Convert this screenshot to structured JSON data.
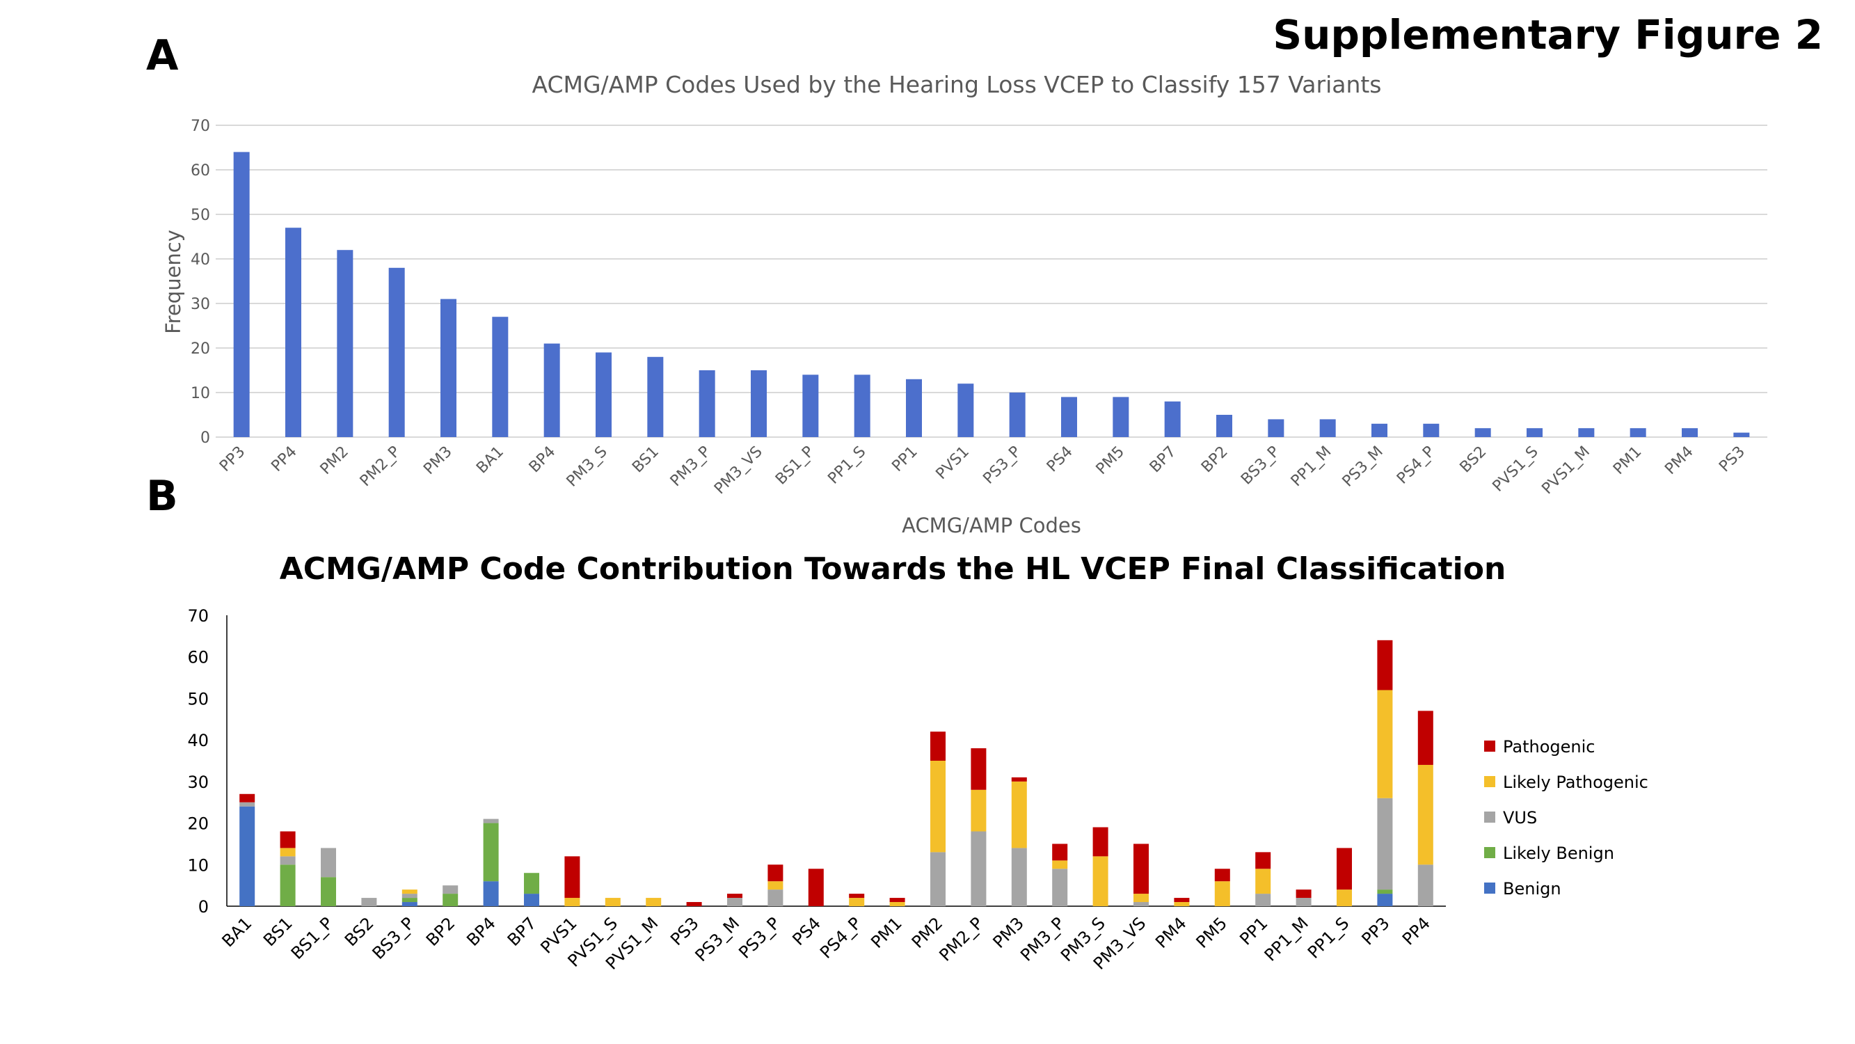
{
  "figure_title": "Supplementary Figure 2",
  "panel_labels": [
    "A",
    "B"
  ],
  "colors": {
    "bar_a": "#4C6FCC",
    "Pathogenic": "#C00000",
    "Likely Pathogenic": "#F4BF2A",
    "VUS": "#A5A5A5",
    "Likely Benign": "#70AD47",
    "Benign": "#4472C4",
    "grid": "#D9D9D9"
  },
  "chart_data": [
    {
      "type": "bar",
      "title": "ACMG/AMP Codes Used by the Hearing Loss VCEP to Classify 157 Variants",
      "xlabel": "ACMG/AMP Codes",
      "ylabel": "Frequency",
      "ylim": [
        0,
        70
      ],
      "yticks": [
        0,
        10,
        20,
        30,
        40,
        50,
        60,
        70
      ],
      "grid": true,
      "categories": [
        "PP3",
        "PP4",
        "PM2",
        "PM2_P",
        "PM3",
        "BA1",
        "BP4",
        "PM3_S",
        "BS1",
        "PM3_P",
        "PM3_VS",
        "BS1_P",
        "PP1_S",
        "PP1",
        "PVS1",
        "PS3_P",
        "PS4",
        "PM5",
        "BP7",
        "BP2",
        "BS3_P",
        "PP1_M",
        "PS3_M",
        "PS4_P",
        "BS2",
        "PVS1_S",
        "PVS1_M",
        "PM1",
        "PM4",
        "PS3"
      ],
      "values": [
        64,
        47,
        42,
        38,
        31,
        27,
        21,
        19,
        18,
        15,
        15,
        14,
        14,
        13,
        12,
        10,
        9,
        9,
        8,
        5,
        4,
        4,
        3,
        3,
        2,
        2,
        2,
        2,
        2,
        1
      ]
    },
    {
      "type": "bar",
      "stacked": true,
      "title": "ACMG/AMP Code Contribution Towards the HL VCEP Final Classification",
      "ylim": [
        0,
        70
      ],
      "yticks": [
        0,
        10,
        20,
        30,
        40,
        50,
        60,
        70
      ],
      "grid": false,
      "legend_position": "right",
      "categories": [
        "BA1",
        "BS1",
        "BS1_P",
        "BS2",
        "BS3_P",
        "BP2",
        "BP4",
        "BP7",
        "PVS1",
        "PVS1_S",
        "PVS1_M",
        "PS3",
        "PS3_M",
        "PS3_P",
        "PS4",
        "PS4_P",
        "PM1",
        "PM2",
        "PM2_P",
        "PM3",
        "PM3_P",
        "PM3_S",
        "PM3_VS",
        "PM4",
        "PM5",
        "PP1",
        "PP1_M",
        "PP1_S",
        "PP3",
        "PP4"
      ],
      "series": [
        {
          "name": "Benign",
          "values": [
            24,
            0,
            0,
            0,
            1,
            0,
            6,
            3,
            0,
            0,
            0,
            0,
            0,
            0,
            0,
            0,
            0,
            0,
            0,
            0,
            0,
            0,
            0,
            0,
            0,
            0,
            0,
            0,
            3,
            0
          ]
        },
        {
          "name": "Likely Benign",
          "values": [
            0,
            10,
            7,
            0,
            1,
            3,
            14,
            5,
            0,
            0,
            0,
            0,
            0,
            0,
            0,
            0,
            0,
            0,
            0,
            0,
            0,
            0,
            0,
            0,
            0,
            0,
            0,
            0,
            1,
            0
          ]
        },
        {
          "name": "VUS",
          "values": [
            1,
            2,
            7,
            2,
            1,
            2,
            1,
            0,
            0,
            0,
            0,
            0,
            2,
            4,
            0,
            0,
            0,
            13,
            18,
            14,
            9,
            0,
            1,
            0,
            0,
            3,
            2,
            0,
            22,
            10
          ]
        },
        {
          "name": "Likely Pathogenic",
          "values": [
            0,
            2,
            0,
            0,
            1,
            0,
            0,
            0,
            2,
            2,
            2,
            0,
            0,
            2,
            0,
            2,
            1,
            22,
            10,
            16,
            2,
            12,
            2,
            1,
            6,
            6,
            0,
            4,
            26,
            24
          ]
        },
        {
          "name": "Pathogenic",
          "values": [
            2,
            4,
            0,
            0,
            0,
            0,
            0,
            0,
            10,
            0,
            0,
            1,
            1,
            4,
            9,
            1,
            1,
            7,
            10,
            1,
            4,
            7,
            12,
            1,
            3,
            4,
            2,
            10,
            12,
            13
          ]
        }
      ],
      "legend_order": [
        "Pathogenic",
        "Likely Pathogenic",
        "VUS",
        "Likely Benign",
        "Benign"
      ]
    }
  ]
}
